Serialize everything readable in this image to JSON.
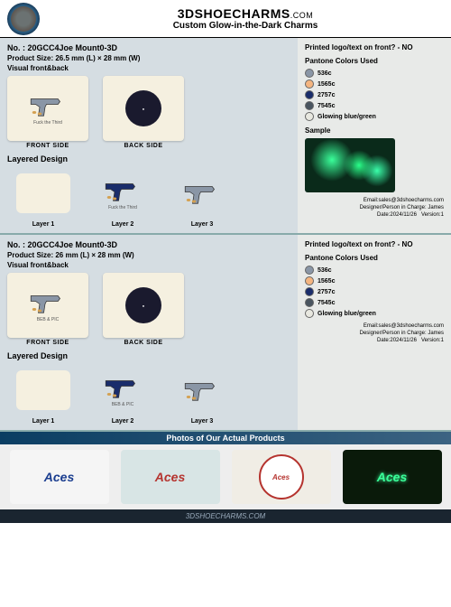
{
  "header": {
    "title": "3DSHOECHARMS",
    "com": ".COM",
    "sub": "Custom Glow-in-the-Dark Charms"
  },
  "products": [
    {
      "no": "No. : 20GCC4Joe Mount0-3D",
      "size": "Product Size: 26.5 mm (L) × 28 mm (W)",
      "vis": "Visual front&back",
      "front_text": "Fuck the Third",
      "front_label": "FRONT SIDE",
      "back_label": "BACK SIDE",
      "layered": "Layered Design",
      "layers": [
        "Layer 1",
        "Layer 2",
        "Layer 3"
      ],
      "right_title": "Printed logo/text on front? - NO",
      "pant_title": "Pantone Colors Used",
      "colors": [
        {
          "hex": "#8a96a6",
          "code": "536c"
        },
        {
          "hex": "#f5b580",
          "code": "1565c"
        },
        {
          "hex": "#1a2d6b",
          "code": "2757c"
        },
        {
          "hex": "#4a5560",
          "code": "7545c"
        },
        {
          "hex": "#e8e8e0",
          "code": "Glowing blue/green"
        }
      ],
      "sample": "Sample",
      "email": "Email:sales@3dshoecharms.com",
      "designer": "Designer/Person in Charge: James",
      "date": "Date:2024/11/26",
      "version": "Version:1",
      "gun_color": "#8a96a6",
      "layer2_gun": "#1a2d6b",
      "layer2_text": "Fuck the Third"
    },
    {
      "no": "No. : 20GCC4Joe Mount0-3D",
      "size": "Product Size: 26 mm (L) × 28 mm (W)",
      "vis": "Visual front&back",
      "front_text": "BEB & PIC",
      "front_label": "FRONT SIDE",
      "back_label": "BACK SIDE",
      "layered": "Layered Design",
      "layers": [
        "Layer 1",
        "Layer 2",
        "Layer 3"
      ],
      "right_title": "Printed logo/text on front? - NO",
      "pant_title": "Pantone Colors Used",
      "colors": [
        {
          "hex": "#8a96a6",
          "code": "536c"
        },
        {
          "hex": "#f5b580",
          "code": "1565c"
        },
        {
          "hex": "#1a2d6b",
          "code": "2757c"
        },
        {
          "hex": "#4a5560",
          "code": "7545c"
        },
        {
          "hex": "#e8e8e0",
          "code": "Glowing blue/green"
        }
      ],
      "email": "Email:sales@3dshoecharms.com",
      "designer": "Designer/Person in Charge: James",
      "date": "Date:2024/11/26",
      "version": "Version:1",
      "gun_color": "#8a96a6",
      "layer2_gun": "#1a2d6b",
      "layer2_text": "BEB & PIC"
    }
  ],
  "photobar": "Photos of Our Actual Products",
  "photo_text": "Aces",
  "footer": "3DSHOECHARMS.COM"
}
